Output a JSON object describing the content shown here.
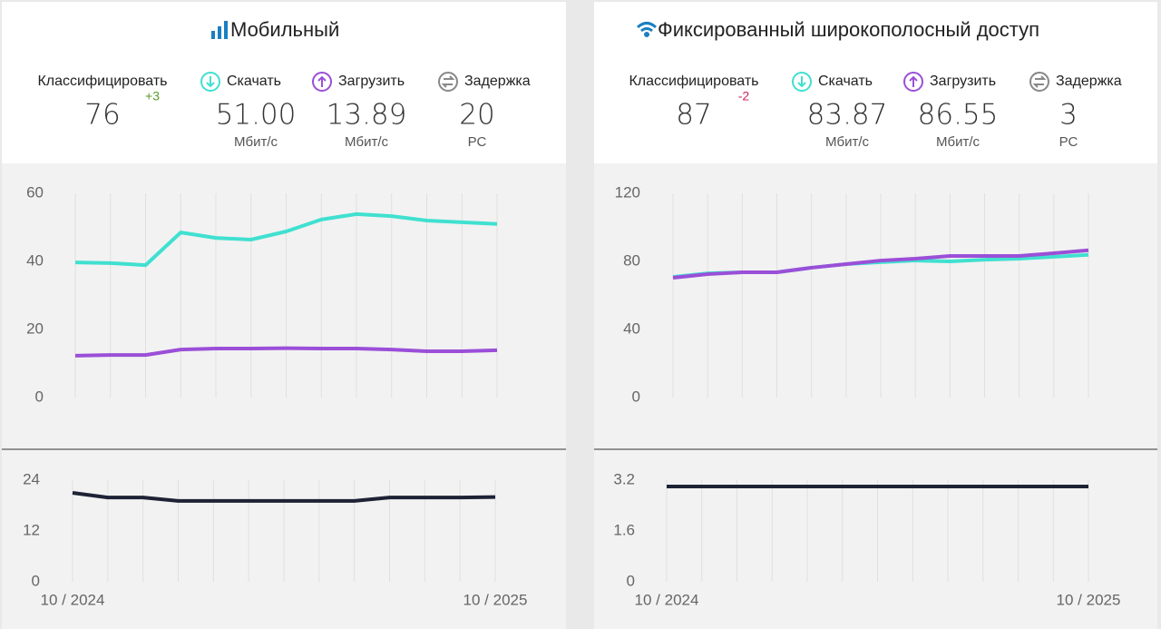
{
  "panels": [
    {
      "title": "Мобильный",
      "stats": [
        {
          "label": "Классифицировать",
          "value": "76",
          "change": "+3"
        },
        {
          "label": "Скачать",
          "value": "51.00",
          "unit": "Мбит/с"
        },
        {
          "label": "Загрузить",
          "value": "13.89",
          "unit": "Мбит/с"
        },
        {
          "label": "Задержка",
          "value": "20",
          "unit": "РС"
        }
      ]
    },
    {
      "title": "Фиксированный широкополосный доступ",
      "stats": [
        {
          "label": "Классифицировать",
          "value": "87",
          "change": "-2"
        },
        {
          "label": "Скачать",
          "value": "83.87",
          "unit": "Мбит/с"
        },
        {
          "label": "Загрузить",
          "value": "86.55",
          "unit": "Мбит/с"
        },
        {
          "label": "Задержка",
          "value": "3",
          "unit": "РС"
        }
      ]
    }
  ],
  "chart_data": [
    {
      "type": "line",
      "categories": [
        null,
        null,
        null,
        null,
        null,
        null,
        null,
        null,
        null,
        null,
        null,
        null,
        null
      ],
      "series": [
        {
          "color": "#40e0d0",
          "values": [
            39.7,
            39.5,
            38.9,
            48.5,
            46.9,
            46.4,
            48.8,
            52.3,
            53.9,
            53.3,
            52,
            51.5,
            51.0
          ]
        },
        {
          "color": "#9b4fd8",
          "values": [
            12.3,
            12.5,
            12.5,
            14.1,
            14.4,
            14.4,
            14.5,
            14.4,
            14.4,
            14.1,
            13.6,
            13.6,
            13.89
          ]
        }
      ],
      "ylim": [
        0,
        60
      ],
      "yticks": [
        0,
        20,
        40,
        60
      ],
      "grid": true
    },
    {
      "type": "line",
      "categories": [
        "10 / 2024",
        null,
        null,
        null,
        null,
        null,
        null,
        null,
        null,
        null,
        null,
        null,
        "10 / 2025"
      ],
      "series": [
        {
          "color": "#1e2235",
          "values": [
            21,
            19.9,
            19.9,
            19.1,
            19.1,
            19.1,
            19.1,
            19.1,
            19.1,
            19.9,
            19.9,
            19.9,
            20
          ]
        }
      ],
      "ylim": [
        0,
        24
      ],
      "yticks": [
        0,
        12,
        24
      ],
      "grid": true
    },
    {
      "type": "line",
      "categories": [
        null,
        null,
        null,
        null,
        null,
        null,
        null,
        null,
        null,
        null,
        null,
        null,
        null
      ],
      "series": [
        {
          "color": "#40e0d0",
          "values": [
            70.9,
            73,
            73.6,
            73.6,
            76.3,
            78.4,
            79.5,
            80.5,
            80,
            81,
            81.6,
            82.7,
            83.87
          ]
        },
        {
          "color": "#9b4fd8",
          "values": [
            70.4,
            72.5,
            73.6,
            73.6,
            76.3,
            78.4,
            80.5,
            81.6,
            83.2,
            83.2,
            83.2,
            84.8,
            86.55
          ]
        }
      ],
      "ylim": [
        0,
        120
      ],
      "yticks": [
        0,
        40,
        80,
        120
      ],
      "grid": true
    },
    {
      "type": "line",
      "categories": [
        "10 / 2024",
        null,
        null,
        null,
        null,
        null,
        null,
        null,
        null,
        null,
        null,
        null,
        "10 / 2025"
      ],
      "series": [
        {
          "color": "#1e2235",
          "values": [
            3,
            3,
            3,
            3,
            3,
            3,
            3,
            3,
            3,
            3,
            3,
            3,
            3
          ]
        }
      ],
      "ylim": [
        0,
        3.2
      ],
      "yticks": [
        0,
        1.6,
        3.2
      ],
      "grid": true
    }
  ]
}
